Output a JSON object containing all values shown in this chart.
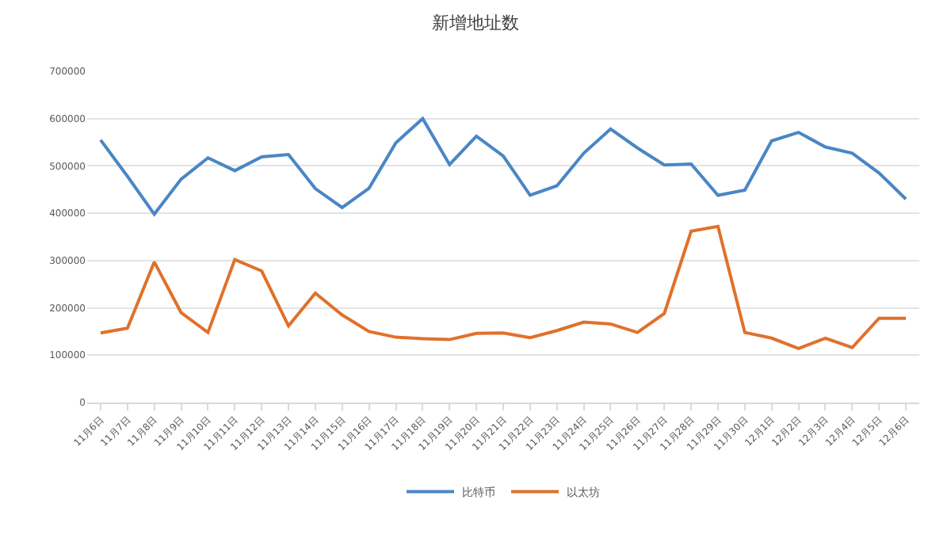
{
  "chart_data": {
    "type": "line",
    "title": "新增地址数",
    "categories": [
      "11月6日",
      "11月7日",
      "11月8日",
      "11月9日",
      "11月10日",
      "11月11日",
      "11月12日",
      "11月13日",
      "11月14日",
      "11月15日",
      "11月16日",
      "11月17日",
      "11月18日",
      "11月19日",
      "11月20日",
      "11月21日",
      "11月22日",
      "11月23日",
      "11月24日",
      "11月25日",
      "11月26日",
      "11月27日",
      "11月28日",
      "11月29日",
      "11月30日",
      "12月1日",
      "12月2日",
      "12月3日",
      "12月4日",
      "12月5日",
      "12月6日"
    ],
    "series": [
      {
        "name": "比特币",
        "color": "#4a86c5",
        "values": [
          555000,
          478000,
          398000,
          472000,
          517000,
          490000,
          519000,
          524000,
          452000,
          412000,
          453000,
          549000,
          600000,
          503000,
          563000,
          521000,
          438000,
          458000,
          527000,
          578000,
          538000,
          502000,
          504000,
          438000,
          449000,
          553000,
          571000,
          540000,
          527000,
          485000,
          430000
        ]
      },
      {
        "name": "以太坊",
        "color": "#e0712a",
        "values": [
          147000,
          157000,
          297000,
          190000,
          148000,
          302000,
          278000,
          162000,
          231000,
          185000,
          150000,
          138000,
          135000,
          133000,
          146000,
          147000,
          137000,
          152000,
          170000,
          166000,
          148000,
          188000,
          362000,
          372000,
          148000,
          136000,
          114000,
          136000,
          116000,
          178000,
          178000
        ]
      }
    ],
    "ylim": [
      0,
      700000
    ],
    "yticks": [
      0,
      100000,
      200000,
      300000,
      400000,
      500000,
      600000,
      700000
    ],
    "grid": "y",
    "legend": "bottom",
    "marker": "none",
    "line_style": "solid"
  }
}
